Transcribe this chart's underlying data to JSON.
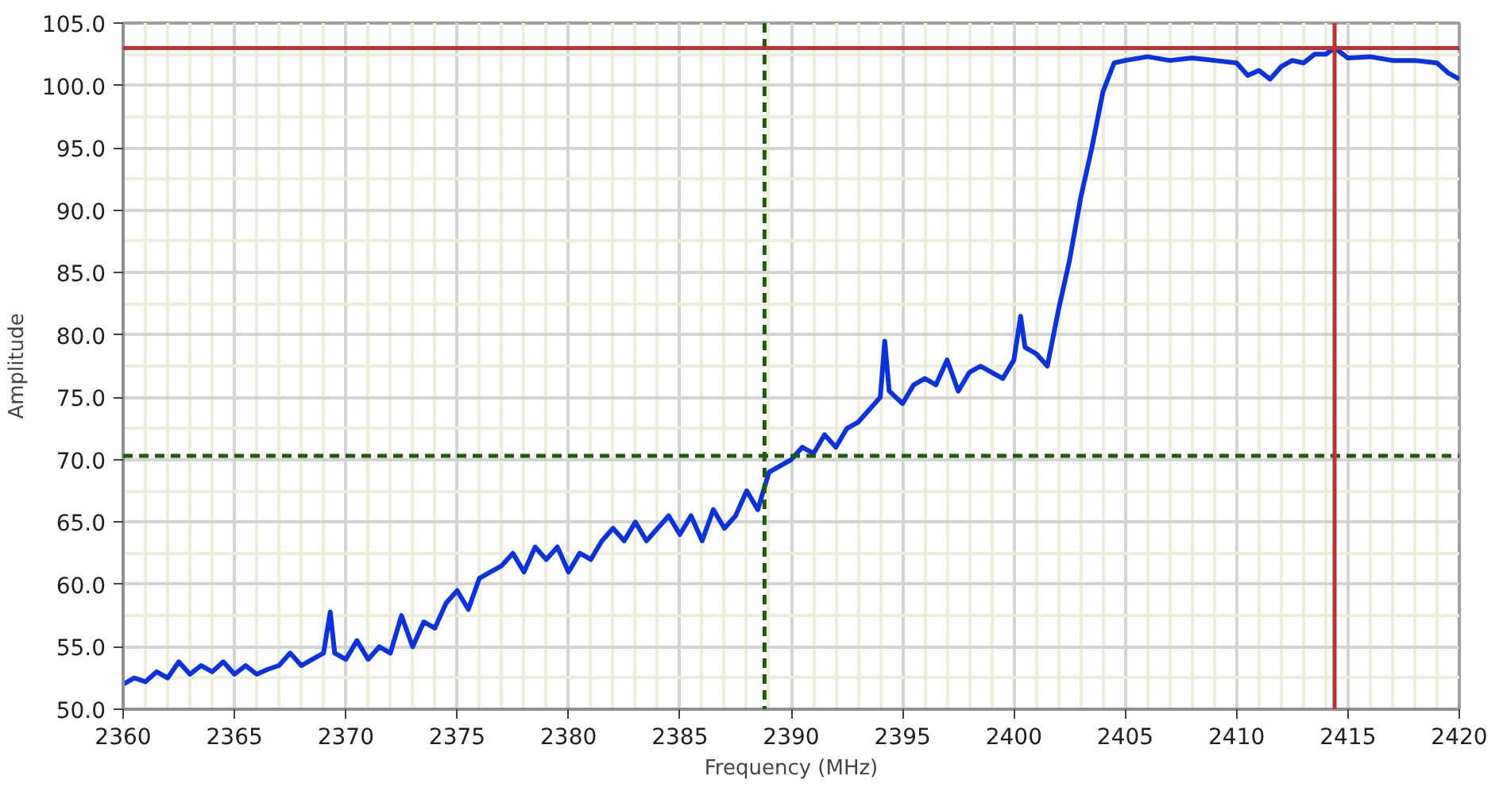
{
  "chart_data": {
    "type": "line",
    "xlabel": "Frequency (MHz)",
    "ylabel": "Amplitude",
    "x": [
      2360,
      2360.5,
      2361,
      2361.5,
      2362,
      2362.5,
      2363,
      2363.5,
      2364,
      2364.5,
      2365,
      2365.5,
      2366,
      2366.5,
      2367,
      2367.5,
      2368,
      2368.5,
      2369,
      2369.3,
      2369.5,
      2370,
      2370.5,
      2371,
      2371.5,
      2372,
      2372.5,
      2373,
      2373.5,
      2374,
      2374.5,
      2375,
      2375.5,
      2376,
      2376.5,
      2377,
      2377.5,
      2378,
      2378.5,
      2379,
      2379.5,
      2380,
      2380.5,
      2381,
      2381.5,
      2382,
      2382.5,
      2383,
      2383.5,
      2384,
      2384.5,
      2385,
      2385.5,
      2386,
      2386.5,
      2387,
      2387.5,
      2388,
      2388.5,
      2389,
      2389.5,
      2390,
      2390.5,
      2391,
      2391.5,
      2392,
      2392.5,
      2393,
      2393.5,
      2394,
      2394.2,
      2394.4,
      2395,
      2395.5,
      2396,
      2396.5,
      2397,
      2397.5,
      2398,
      2398.5,
      2399,
      2399.5,
      2400,
      2400.3,
      2400.5,
      2401,
      2401.5,
      2402,
      2402.5,
      2403,
      2403.5,
      2404,
      2404.5,
      2405,
      2406,
      2407,
      2408,
      2409,
      2410,
      2410.5,
      2411,
      2411.5,
      2412,
      2412.5,
      2413,
      2413.5,
      2414,
      2414.4,
      2415,
      2416,
      2417,
      2418,
      2419,
      2419.5,
      2420
    ],
    "series": [
      {
        "color": "#0a32e0",
        "values": [
          52.0,
          52.5,
          52.2,
          53.0,
          52.5,
          53.8,
          52.8,
          53.5,
          53.0,
          53.8,
          52.8,
          53.5,
          52.8,
          53.2,
          53.5,
          54.5,
          53.5,
          54.0,
          54.5,
          57.8,
          54.5,
          54.0,
          55.5,
          54.0,
          55.0,
          54.5,
          57.5,
          55.0,
          57.0,
          56.5,
          58.5,
          59.5,
          58.0,
          60.5,
          61.0,
          61.5,
          62.5,
          61.0,
          63.0,
          62.0,
          63.0,
          61.0,
          62.5,
          62.0,
          63.5,
          64.5,
          63.5,
          65.0,
          63.5,
          64.5,
          65.5,
          64.0,
          65.5,
          63.5,
          66.0,
          64.5,
          65.5,
          67.5,
          66.0,
          69.0,
          69.5,
          70.0,
          71.0,
          70.5,
          72.0,
          71.0,
          72.5,
          73.0,
          74.0,
          75.0,
          79.5,
          75.5,
          74.5,
          76.0,
          76.5,
          76.0,
          78.0,
          75.5,
          77.0,
          77.5,
          77.0,
          76.5,
          78.0,
          81.5,
          79.0,
          78.5,
          77.5,
          82.0,
          86.0,
          91.0,
          95.0,
          99.5,
          101.8,
          102.0,
          102.3,
          102.0,
          102.2,
          102.0,
          101.8,
          100.8,
          101.2,
          100.5,
          101.5,
          102.0,
          101.8,
          102.5,
          102.5,
          103.0,
          102.2,
          102.3,
          102.0,
          102.0,
          101.8,
          101.0,
          100.5
        ]
      }
    ],
    "xlim": [
      2360,
      2420
    ],
    "ylim": [
      50,
      105
    ],
    "xticks": [
      2360,
      2365,
      2370,
      2375,
      2380,
      2385,
      2390,
      2395,
      2400,
      2405,
      2410,
      2415,
      2420
    ],
    "yticks": [
      {
        "value": 50,
        "label": "50.0"
      },
      {
        "value": 55,
        "label": "55.0"
      },
      {
        "value": 60,
        "label": "60.0"
      },
      {
        "value": 65,
        "label": "65.0"
      },
      {
        "value": 70,
        "label": "70.0"
      },
      {
        "value": 75,
        "label": "75.0"
      },
      {
        "value": 80,
        "label": "80.0"
      },
      {
        "value": 85,
        "label": "85.0"
      },
      {
        "value": 90,
        "label": "90.0"
      },
      {
        "value": 95,
        "label": "95.0"
      },
      {
        "value": 100,
        "label": "100.0"
      },
      {
        "value": 105,
        "label": "105.0"
      }
    ],
    "ref_lines": [
      {
        "axis": "x",
        "value": 2388.8,
        "color": "#1e5a0a",
        "line_style": "dashed"
      },
      {
        "axis": "y",
        "value": 70.3,
        "color": "#1e5a0a",
        "line_style": "dashed"
      },
      {
        "axis": "x",
        "value": 2414.4,
        "color": "#c03030",
        "line_style": "solid"
      },
      {
        "axis": "y",
        "value": 103.0,
        "color": "#c03030",
        "line_style": "solid"
      }
    ],
    "grid": true,
    "marker": "none",
    "line_style": "solid"
  }
}
